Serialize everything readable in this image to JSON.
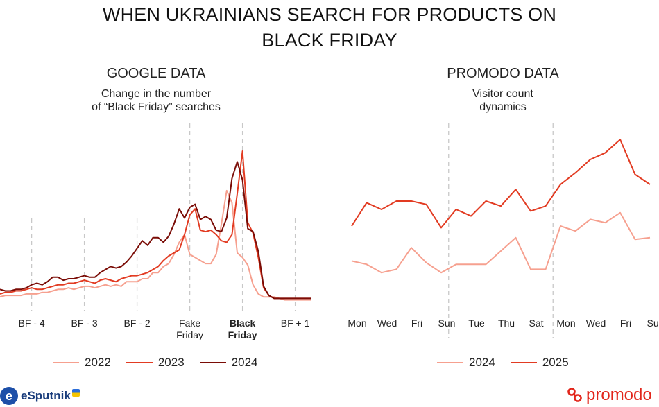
{
  "title_line1": "WHEN UKRAINIANS SEARCH FOR PRODUCTS ON",
  "title_line2": "BLACK FRIDAY",
  "colors": {
    "c2022": "#f6a08f",
    "c2023": "#e23b22",
    "c2024": "#7a0c06",
    "grid": "#c8c8c8"
  },
  "logos": {
    "esputnik": "eSputnik",
    "promodo": "promodo"
  },
  "chart_data": [
    {
      "type": "line",
      "heading": "GOOGLE DATA",
      "subtitle_line1": "Change in the number",
      "subtitle_line2": "of “Black Friday” searches",
      "x_ticks": [
        {
          "i": 6,
          "lines": [
            "BF - 4"
          ],
          "bold": false
        },
        {
          "i": 16,
          "lines": [
            "BF - 3"
          ],
          "bold": false
        },
        {
          "i": 26,
          "lines": [
            "BF - 2"
          ],
          "bold": false
        },
        {
          "i": 36,
          "lines": [
            "Fake",
            "Friday"
          ],
          "bold": false
        },
        {
          "i": 46,
          "lines": [
            "Black",
            "Friday"
          ],
          "bold": true
        },
        {
          "i": 56,
          "lines": [
            "BF + 1"
          ],
          "bold": false
        }
      ],
      "gridlines_at": [
        6,
        16,
        26,
        36,
        46,
        56
      ],
      "ylim": [
        0,
        100
      ],
      "series": [
        {
          "name": "2022",
          "color_key": "c2022",
          "values": [
            4,
            5,
            5,
            5,
            5,
            6,
            6,
            6,
            7,
            7,
            8,
            9,
            9,
            10,
            9,
            10,
            11,
            11,
            10,
            11,
            12,
            11,
            12,
            11,
            14,
            14,
            14,
            16,
            16,
            20,
            20,
            24,
            26,
            32,
            40,
            45,
            32,
            30,
            28,
            26,
            26,
            32,
            52,
            74,
            66,
            33,
            30,
            25,
            12,
            6,
            4,
            4,
            4,
            3,
            2,
            2,
            2,
            2,
            2,
            2
          ]
        },
        {
          "name": "2023",
          "color_key": "c2023",
          "values": [
            6,
            7,
            7,
            8,
            8,
            9,
            10,
            9,
            9,
            10,
            11,
            12,
            12,
            13,
            13,
            14,
            15,
            14,
            13,
            15,
            16,
            15,
            14,
            16,
            17,
            18,
            18,
            19,
            20,
            22,
            24,
            28,
            31,
            33,
            35,
            45,
            58,
            62,
            48,
            47,
            48,
            45,
            41,
            40,
            45,
            72,
            100,
            53,
            46,
            30,
            10,
            5,
            3,
            3,
            3,
            3,
            3,
            3,
            3,
            3
          ]
        },
        {
          "name": "2024",
          "color_key": "c2024",
          "values": [
            9,
            8,
            8,
            9,
            9,
            10,
            12,
            13,
            12,
            14,
            17,
            17,
            15,
            16,
            16,
            17,
            18,
            17,
            17,
            20,
            22,
            24,
            23,
            24,
            27,
            31,
            36,
            41,
            38,
            43,
            43,
            40,
            44,
            52,
            62,
            56,
            63,
            65,
            55,
            57,
            55,
            48,
            47,
            56,
            82,
            93,
            81,
            49,
            47,
            34,
            11,
            5,
            3,
            3,
            3,
            3,
            3,
            3,
            3,
            3
          ]
        }
      ]
    },
    {
      "type": "line",
      "heading": "PROMODO DATA",
      "subtitle_line1": "Visitor count",
      "subtitle_line2": "dynamics",
      "categories": [
        "Mon",
        "Tue",
        "Wed",
        "Thu",
        "Fri",
        "Sat",
        "Sun",
        "Mon",
        "Tue",
        "Wed",
        "Thu",
        "Fri",
        "Sat",
        "Sun",
        "Mon",
        "Tue",
        "Wed",
        "Thu",
        "Fri",
        "Sat",
        "Sun"
      ],
      "x_tick_labels": [
        "Mon",
        "Wed",
        "Fri",
        "Sun",
        "Tue",
        "Thu",
        "Sat",
        "Mon",
        "Wed",
        "Fri",
        "Sun"
      ],
      "x_tick_positions": [
        0,
        2,
        4,
        6,
        8,
        10,
        12,
        14,
        16,
        18,
        20
      ],
      "week_separators_at": [
        6.5,
        13.5
      ],
      "ylim": [
        0,
        100
      ],
      "series": [
        {
          "name": "2024",
          "color_key": "c2022",
          "values": [
            14,
            12,
            7,
            9,
            22,
            13,
            7,
            12,
            12,
            12,
            20,
            28,
            9,
            9,
            35,
            32,
            39,
            37,
            43,
            27,
            28
          ]
        },
        {
          "name": "2025",
          "color_key": "c2023",
          "values": [
            35,
            49,
            45,
            50,
            50,
            48,
            34,
            45,
            41,
            50,
            47,
            57,
            44,
            47,
            60,
            67,
            75,
            79,
            87,
            66,
            60
          ]
        }
      ]
    }
  ]
}
